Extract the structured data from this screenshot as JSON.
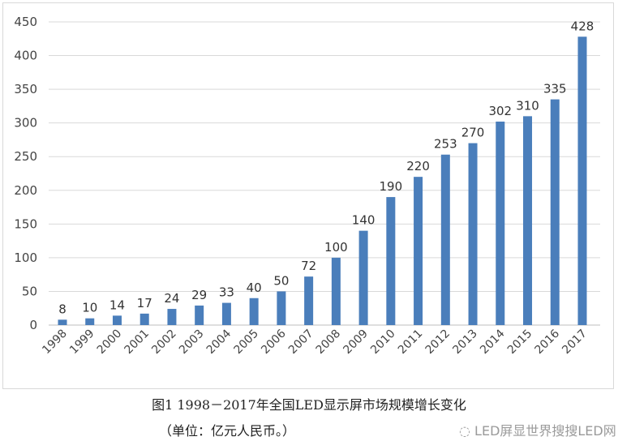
{
  "chart_data": {
    "type": "bar",
    "categories": [
      "1998",
      "1999",
      "2000",
      "2001",
      "2002",
      "2003",
      "2004",
      "2005",
      "2006",
      "2007",
      "2008",
      "2009",
      "2010",
      "2011",
      "2012",
      "2013",
      "2014",
      "2015",
      "2016",
      "2017"
    ],
    "values": [
      8,
      10,
      14,
      17,
      24,
      29,
      33,
      40,
      50,
      72,
      100,
      140,
      190,
      220,
      253,
      270,
      302,
      310,
      335,
      428
    ],
    "ylim": [
      0,
      450
    ],
    "yticks": [
      0,
      50,
      100,
      150,
      200,
      250,
      300,
      350,
      400,
      450
    ],
    "grid": true,
    "bar_color": "#4a7ebb",
    "data_labels": true
  },
  "caption": {
    "line1": "图1  1998－2017年全国LED显示屏市场规模增长变化",
    "line2": "（单位：亿元人民币。）"
  },
  "watermark": "LED屏显世界搜搜LED网"
}
